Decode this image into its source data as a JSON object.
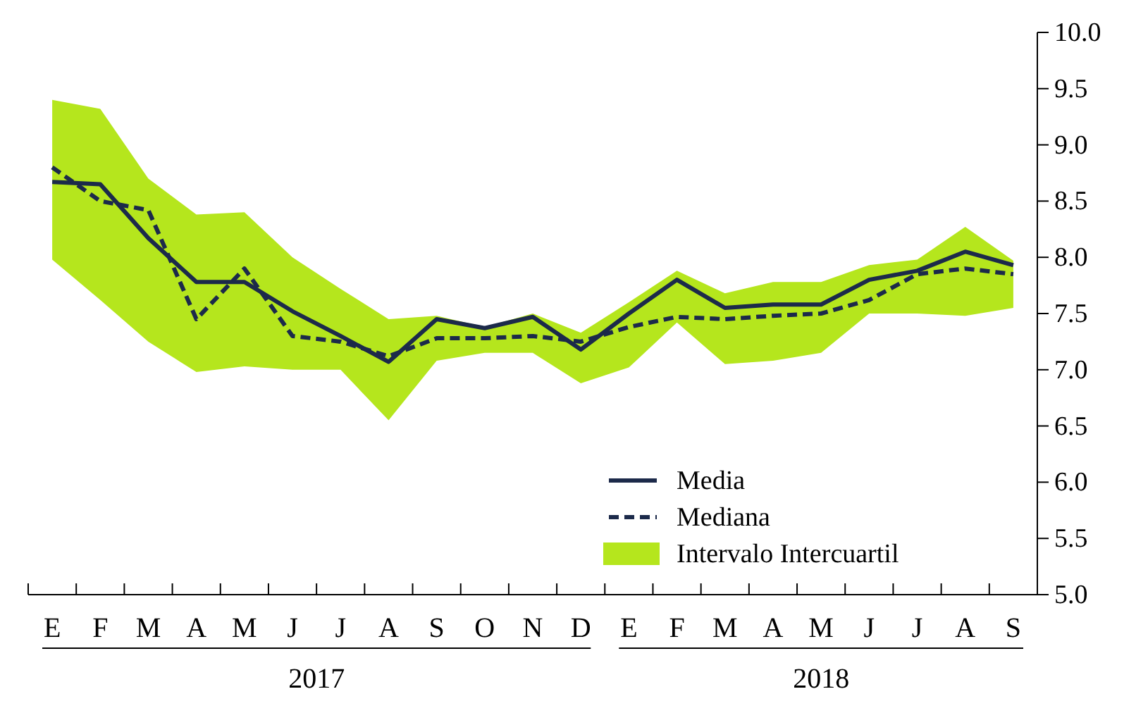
{
  "chart_data": {
    "type": "line",
    "categories": [
      "E",
      "F",
      "M",
      "A",
      "M",
      "J",
      "J",
      "A",
      "S",
      "O",
      "N",
      "D",
      "E",
      "F",
      "M",
      "A",
      "M",
      "J",
      "J",
      "A",
      "S"
    ],
    "series": [
      {
        "name": "Media",
        "color": "#1c2a4a",
        "line_style": "solid",
        "values": [
          8.67,
          8.65,
          8.17,
          7.78,
          7.78,
          7.52,
          7.3,
          7.07,
          7.45,
          7.37,
          7.47,
          7.18,
          7.5,
          7.8,
          7.55,
          7.58,
          7.58,
          7.8,
          7.88,
          8.05,
          7.93
        ]
      },
      {
        "name": "Mediana",
        "color": "#1c2a4a",
        "line_style": "dashed",
        "values": [
          8.8,
          8.5,
          8.42,
          7.45,
          7.9,
          7.3,
          7.25,
          7.12,
          7.28,
          7.28,
          7.3,
          7.25,
          7.38,
          7.47,
          7.45,
          7.48,
          7.5,
          7.62,
          7.85,
          7.9,
          7.85
        ]
      },
      {
        "name": "Intervalo Intercuartil",
        "type": "area",
        "color": "#b5e61d",
        "values": [
          null,
          null,
          null,
          null,
          null,
          null,
          null,
          null,
          null,
          null,
          null,
          null,
          null,
          null,
          null,
          null,
          null,
          null,
          null,
          null,
          null
        ],
        "upper": [
          9.4,
          9.32,
          8.7,
          8.38,
          8.4,
          8.0,
          7.72,
          7.45,
          7.48,
          7.38,
          7.5,
          7.33,
          7.6,
          7.88,
          7.68,
          7.78,
          7.78,
          7.93,
          7.98,
          8.27,
          7.97
        ],
        "lower": [
          7.98,
          7.62,
          7.25,
          6.98,
          7.03,
          7.0,
          7.0,
          6.55,
          7.08,
          7.15,
          7.15,
          6.88,
          7.02,
          7.42,
          7.05,
          7.08,
          7.15,
          7.5,
          7.5,
          7.48,
          7.55
        ]
      }
    ],
    "ylim": [
      5,
      10
    ],
    "yticks": [
      {
        "value": 5,
        "label": "5.0"
      },
      {
        "value": 5.5,
        "label": "5.5"
      },
      {
        "value": 6,
        "label": "6.0"
      },
      {
        "value": 6.5,
        "label": "6.5"
      },
      {
        "value": 7,
        "label": "7.0"
      },
      {
        "value": 7.5,
        "label": "7.5"
      },
      {
        "value": 8,
        "label": "8.0"
      },
      {
        "value": 8.5,
        "label": "8.5"
      },
      {
        "value": 9,
        "label": "9.0"
      },
      {
        "value": 9.5,
        "label": "9.5"
      },
      {
        "value": 10,
        "label": "10.0"
      }
    ],
    "annotations": [
      "2017",
      "2018"
    ],
    "legend": "bottom right",
    "grid": false
  }
}
